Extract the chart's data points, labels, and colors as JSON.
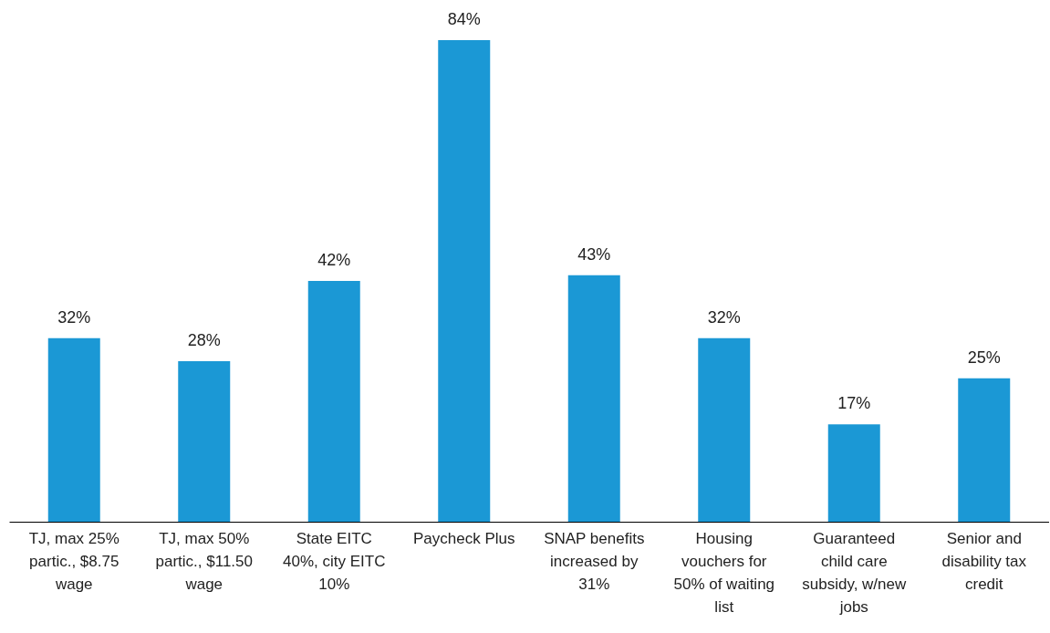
{
  "chart_data": {
    "type": "bar",
    "categories": [
      "TJ, max 25% partic., $8.75 wage",
      "TJ, max 50% partic., $11.50 wage",
      "State EITC 40%, city EITC 10%",
      "Paycheck Plus",
      "SNAP benefits increased by 31%",
      "Housing vouchers for 50% of waiting list",
      "Guaranteed child care subsidy, w/new jobs",
      "Senior and disability tax credit"
    ],
    "values": [
      32,
      28,
      42,
      84,
      43,
      32,
      17,
      25
    ],
    "value_labels": [
      "32%",
      "28%",
      "42%",
      "84%",
      "43%",
      "32%",
      "17%",
      "25%"
    ],
    "color": "#1b98d5",
    "tick_labels": "x"
  }
}
